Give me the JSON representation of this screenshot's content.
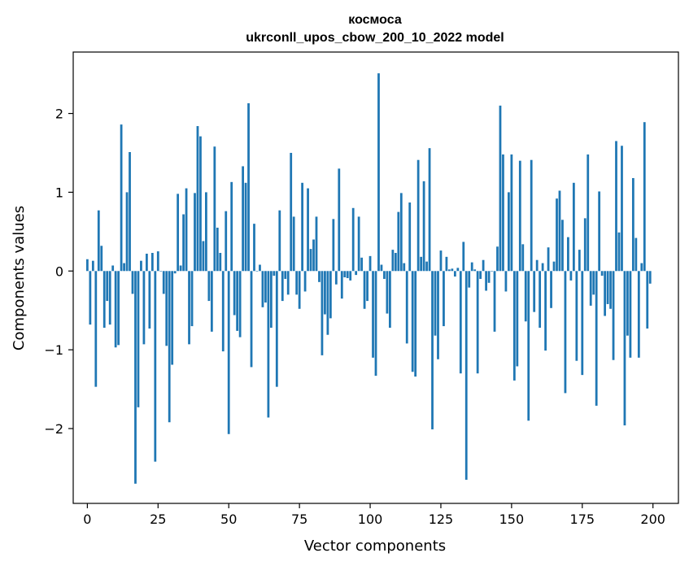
{
  "chart_data": {
    "type": "bar",
    "title": "космоса",
    "subtitle": "ukrconll_upos_cbow_200_10_2022 model",
    "xlabel": "Vector components",
    "ylabel": "Components values",
    "xlim": [
      -5,
      209
    ],
    "ylim": [
      -2.95,
      2.78
    ],
    "xticks": [
      0,
      25,
      50,
      75,
      100,
      125,
      150,
      175,
      200
    ],
    "yticks": [
      -2,
      -1,
      0,
      1,
      2
    ],
    "bar_color": "#1f77b4",
    "grid": false,
    "x": [
      0,
      1,
      2,
      3,
      4,
      5,
      6,
      7,
      8,
      9,
      10,
      11,
      12,
      13,
      14,
      15,
      16,
      17,
      18,
      19,
      20,
      21,
      22,
      23,
      24,
      25,
      26,
      27,
      28,
      29,
      30,
      31,
      32,
      33,
      34,
      35,
      36,
      37,
      38,
      39,
      40,
      41,
      42,
      43,
      44,
      45,
      46,
      47,
      48,
      49,
      50,
      51,
      52,
      53,
      54,
      55,
      56,
      57,
      58,
      59,
      60,
      61,
      62,
      63,
      64,
      65,
      66,
      67,
      68,
      69,
      70,
      71,
      72,
      73,
      74,
      75,
      76,
      77,
      78,
      79,
      80,
      81,
      82,
      83,
      84,
      85,
      86,
      87,
      88,
      89,
      90,
      91,
      92,
      93,
      94,
      95,
      96,
      97,
      98,
      99,
      100,
      101,
      102,
      103,
      104,
      105,
      106,
      107,
      108,
      109,
      110,
      111,
      112,
      113,
      114,
      115,
      116,
      117,
      118,
      119,
      120,
      121,
      122,
      123,
      124,
      125,
      126,
      127,
      128,
      129,
      130,
      131,
      132,
      133,
      134,
      135,
      136,
      137,
      138,
      139,
      140,
      141,
      142,
      143,
      144,
      145,
      146,
      147,
      148,
      149,
      150,
      151,
      152,
      153,
      154,
      155,
      156,
      157,
      158,
      159,
      160,
      161,
      162,
      163,
      164,
      165,
      166,
      167,
      168,
      169,
      170,
      171,
      172,
      173,
      174,
      175,
      176,
      177,
      178,
      179,
      180,
      181,
      182,
      183,
      184,
      185,
      186,
      187,
      188,
      189,
      190,
      191,
      192,
      193,
      194,
      195,
      196,
      197,
      198,
      199
    ],
    "values": [
      0.15,
      -0.68,
      0.13,
      -1.47,
      0.77,
      0.32,
      -0.72,
      -0.38,
      -0.68,
      0.07,
      -0.97,
      -0.94,
      1.86,
      0.1,
      1.0,
      1.51,
      -0.29,
      -2.7,
      -1.73,
      0.13,
      -0.93,
      0.22,
      -0.73,
      0.23,
      -2.42,
      0.25,
      0.0,
      -0.29,
      -0.95,
      -1.92,
      -1.19,
      -0.03,
      0.98,
      0.07,
      0.72,
      1.05,
      -0.93,
      -0.7,
      0.99,
      1.84,
      1.71,
      0.38,
      1.0,
      -0.38,
      -0.77,
      1.58,
      0.55,
      0.23,
      -1.02,
      0.76,
      -2.07,
      1.13,
      -0.56,
      -0.76,
      -0.84,
      1.33,
      1.12,
      2.13,
      -1.22,
      0.6,
      0.0,
      0.08,
      -0.46,
      -0.4,
      -1.86,
      -0.72,
      -0.06,
      -1.47,
      0.77,
      -0.38,
      -0.1,
      -0.3,
      1.5,
      0.69,
      -0.3,
      -0.48,
      1.12,
      -0.26,
      1.05,
      0.28,
      0.4,
      0.69,
      -0.14,
      -1.07,
      -0.55,
      -0.81,
      -0.6,
      0.66,
      -0.17,
      1.3,
      -0.35,
      -0.08,
      -0.09,
      -0.12,
      0.8,
      -0.05,
      0.69,
      0.17,
      -0.48,
      -0.38,
      0.19,
      -1.1,
      -1.33,
      2.51,
      0.08,
      -0.1,
      -0.54,
      -0.72,
      0.27,
      0.23,
      0.75,
      0.99,
      0.1,
      -0.92,
      0.87,
      -1.28,
      -1.34,
      1.41,
      0.18,
      1.14,
      0.12,
      1.56,
      -2.01,
      -0.82,
      -1.12,
      0.26,
      -0.7,
      0.18,
      0.02,
      0.03,
      -0.07,
      0.04,
      -1.3,
      0.37,
      -2.65,
      -0.21,
      0.11,
      0.02,
      -1.3,
      -0.1,
      0.14,
      -0.25,
      -0.15,
      0.0,
      -0.77,
      0.31,
      2.1,
      1.48,
      -0.26,
      1.0,
      1.48,
      -1.39,
      -1.21,
      1.4,
      0.34,
      -0.64,
      -1.9,
      1.41,
      -0.52,
      0.14,
      -0.72,
      0.1,
      -1.01,
      0.3,
      -0.47,
      0.12,
      0.92,
      1.02,
      0.65,
      -1.55,
      0.43,
      -0.12,
      1.12,
      -1.14,
      0.27,
      -1.32,
      0.67,
      1.48,
      -0.44,
      -0.3,
      -1.71,
      1.01,
      -0.06,
      -0.57,
      -0.42,
      -0.48,
      -1.13,
      1.65,
      0.49,
      1.59,
      -1.96,
      -0.82,
      -1.1,
      1.18,
      0.42,
      -1.1,
      0.1,
      1.89,
      -0.73,
      -0.16
    ]
  }
}
